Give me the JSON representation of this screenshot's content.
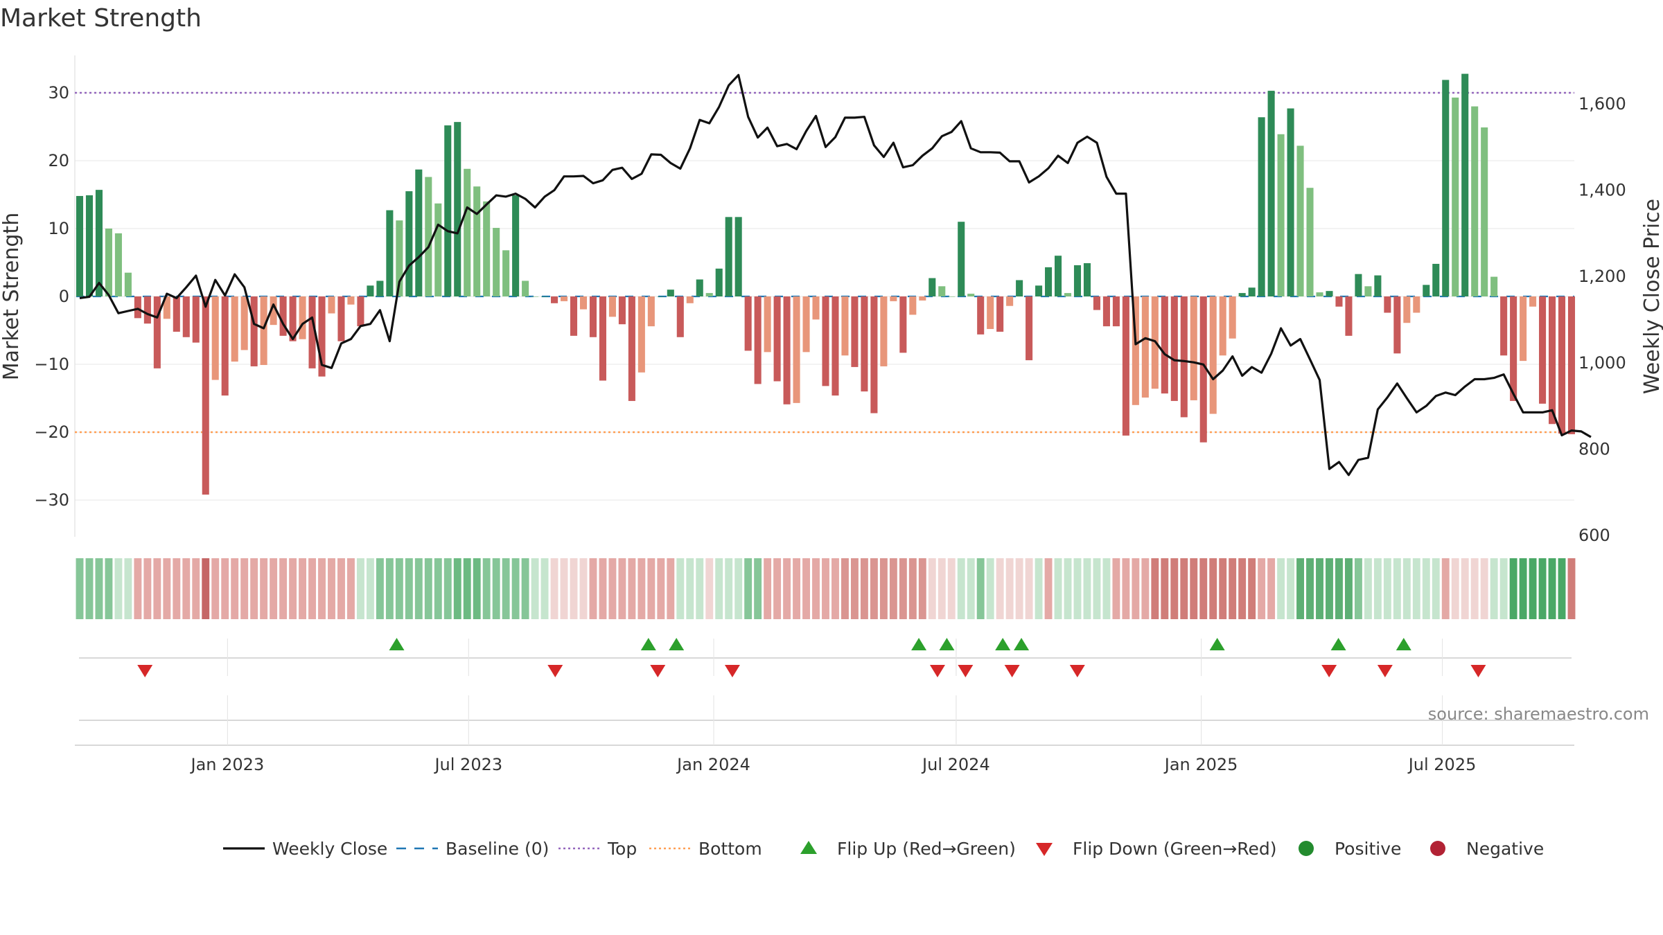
{
  "chart_data": {
    "type": "bar",
    "title": "Market Strength",
    "ylabel_left": "Market Strength",
    "ylabel_right": "Weekly Close Price",
    "ylim_left": [
      -35,
      36
    ],
    "ylim_right": [
      600,
      1690
    ],
    "yticks_left": [
      30,
      20,
      10,
      0,
      -10,
      -20,
      -30
    ],
    "yticks_right": [
      1600,
      1400,
      1200,
      1000,
      800,
      600
    ],
    "top_level": 30,
    "bottom_level": -20,
    "date_start": "2022-09-12",
    "date_end": "2025-10-06",
    "x_ticks": [
      {
        "date": "2023-01-01",
        "label": "Jan 2023"
      },
      {
        "date": "2023-07-01",
        "label": "Jul 2023"
      },
      {
        "date": "2024-01-01",
        "label": "Jan 2024"
      },
      {
        "date": "2024-07-01",
        "label": "Jul 2024"
      },
      {
        "date": "2025-01-01",
        "label": "Jan 2025"
      },
      {
        "date": "2025-07-01",
        "label": "Jul 2025"
      }
    ],
    "series": [
      {
        "name": "Market Strength",
        "values": [
          14.8,
          14.9,
          15.7,
          10,
          9.3,
          3.5,
          -3.2,
          -4,
          -10.6,
          -3.3,
          -5.2,
          -6,
          -6.8,
          -29.2,
          -12.3,
          -14.6,
          -9.6,
          -7.9,
          -10.3,
          -10.1,
          -4.2,
          -5.8,
          -6.6,
          -6.3,
          -10.6,
          -11.8,
          -2.5,
          -6.6,
          -1.2,
          -4.4,
          1.6,
          2.3,
          12.7,
          11.2,
          15.5,
          18.7,
          17.6,
          13.7,
          25.2,
          25.7,
          18.8,
          16.2,
          14,
          10.1,
          6.8,
          14.9,
          2.3,
          0,
          0,
          -1,
          -0.7,
          -5.8,
          -1.9,
          -6,
          -12.4,
          -3,
          -4.1,
          -15.4,
          -11.2,
          -4.4,
          0,
          1,
          -6,
          -1,
          2.5,
          0.5,
          4.1,
          11.7,
          11.7,
          -8,
          -12.9,
          -8.2,
          -12.5,
          -15.9,
          -15.7,
          -8.2,
          -3.4,
          -13.2,
          -14.6,
          -8.7,
          -10.4,
          -14,
          -17.2,
          -10.3,
          -0.7,
          -8.3,
          -2.7,
          -0.6,
          2.7,
          1.5,
          0,
          11,
          0.4,
          -5.6,
          -4.8,
          -5.2,
          -1.4,
          2.4,
          -9.4,
          1.6,
          4.3,
          6,
          0.5,
          4.6,
          4.9,
          -2,
          -4.4,
          -4.4,
          -20.5,
          -16,
          -14.9,
          -13.6,
          -14.3,
          -15.4,
          -17.8,
          -15.3,
          -21.5,
          -17.3,
          -8.7,
          -6.2,
          0.5,
          1.3,
          26.4,
          30.3,
          23.9,
          27.7,
          22.2,
          16,
          0.6,
          0.8,
          -1.5,
          -5.8,
          3.3,
          1.5,
          3.1,
          -2.4,
          -8.4,
          -3.9,
          -2.4,
          1.7,
          4.8,
          31.9,
          29.3,
          32.8,
          28,
          24.9,
          2.9,
          -8.7,
          -15.4,
          -9.5,
          -1.5,
          -15.8,
          -18.8,
          -20.2,
          -20.3
        ]
      },
      {
        "name": "Weekly Close",
        "values": [
          1150,
          1153,
          1185,
          1157,
          1115,
          1120,
          1125,
          1113,
          1105,
          1160,
          1150,
          1175,
          1202,
          1130,
          1192,
          1156,
          1205,
          1175,
          1090,
          1080,
          1135,
          1090,
          1055,
          1090,
          1105,
          995,
          988,
          1045,
          1055,
          1085,
          1090,
          1122,
          1050,
          1188,
          1225,
          1245,
          1268,
          1320,
          1305,
          1300,
          1360,
          1345,
          1367,
          1388,
          1385,
          1392,
          1380,
          1360,
          1385,
          1400,
          1432,
          1432,
          1433,
          1416,
          1423,
          1447,
          1452,
          1426,
          1438,
          1483,
          1482,
          1463,
          1450,
          1497,
          1563,
          1555,
          1593,
          1643,
          1667,
          1570,
          1522,
          1545,
          1502,
          1507,
          1495,
          1537,
          1572,
          1500,
          1523,
          1568,
          1568,
          1570,
          1504,
          1477,
          1510,
          1453,
          1458,
          1480,
          1497,
          1525,
          1535,
          1560,
          1497,
          1488,
          1488,
          1487,
          1467,
          1467,
          1418,
          1432,
          1451,
          1480,
          1463,
          1510,
          1524,
          1510,
          1431,
          1392,
          1392,
          1043,
          1057,
          1050,
          1020,
          1006,
          1004,
          1001,
          996,
          962,
          982,
          1015,
          970,
          990,
          977,
          1021,
          1080,
          1040,
          1055,
          1008,
          960,
          754,
          770,
          740,
          775,
          780,
          892,
          920,
          952,
          918,
          885,
          900,
          923,
          931,
          925,
          945,
          962,
          962,
          965,
          973,
          928,
          885,
          885,
          885,
          890,
          832,
          843,
          841,
          828
        ]
      }
    ],
    "state_strip": [
      {
        "color": "#86c698",
        "count": 4
      },
      {
        "color": "#c6e5ce",
        "count": 2
      },
      {
        "color": "#e4a9a6",
        "count": 7
      },
      {
        "color": "#c56666",
        "count": 1
      },
      {
        "color": "#e4a9a6",
        "count": 15
      },
      {
        "color": "#c6e5ce",
        "count": 2
      },
      {
        "color": "#86c698",
        "count": 8
      },
      {
        "color": "#6cba82",
        "count": 3
      },
      {
        "color": "#86c698",
        "count": 5
      },
      {
        "color": "#c6e5ce",
        "count": 2
      },
      {
        "color": "#f0d5d3",
        "count": 4
      },
      {
        "color": "#e4a9a6",
        "count": 9
      },
      {
        "color": "#c6e5ce",
        "count": 3
      },
      {
        "color": "#f0d5d3",
        "count": 1
      },
      {
        "color": "#c6e5ce",
        "count": 3
      },
      {
        "color": "#86c698",
        "count": 2
      },
      {
        "color": "#e4a9a6",
        "count": 8
      },
      {
        "color": "#da9591",
        "count": 9
      },
      {
        "color": "#f0d5d3",
        "count": 3
      },
      {
        "color": "#c6e5ce",
        "count": 2
      },
      {
        "color": "#86c698",
        "count": 1
      },
      {
        "color": "#c6e5ce",
        "count": 1
      },
      {
        "color": "#f0d5d3",
        "count": 4
      },
      {
        "color": "#c6e5ce",
        "count": 1
      },
      {
        "color": "#e4a9a6",
        "count": 1
      },
      {
        "color": "#c6e5ce",
        "count": 6
      },
      {
        "color": "#e4a9a6",
        "count": 4
      },
      {
        "color": "#d07d79",
        "count": 11
      },
      {
        "color": "#e4a9a6",
        "count": 2
      },
      {
        "color": "#c6e5ce",
        "count": 2
      },
      {
        "color": "#5daf74",
        "count": 6
      },
      {
        "color": "#86c698",
        "count": 1
      },
      {
        "color": "#c6e5ce",
        "count": 8
      },
      {
        "color": "#e4a9a6",
        "count": 1
      },
      {
        "color": "#f0d5d3",
        "count": 4
      },
      {
        "color": "#c6e5ce",
        "count": 2
      },
      {
        "color": "#4aa866",
        "count": 6
      },
      {
        "color": "#d07d79",
        "count": 8
      }
    ],
    "flip_up_dates": [
      "2023-05-08",
      "2023-11-13",
      "2023-12-04",
      "2024-06-03",
      "2024-06-24",
      "2024-08-05",
      "2024-08-19",
      "2025-01-13",
      "2025-04-14",
      "2025-06-02"
    ],
    "flip_down_dates": [
      "2022-10-31",
      "2023-09-04",
      "2023-11-20",
      "2024-01-15",
      "2024-06-17",
      "2024-07-08",
      "2024-08-12",
      "2024-09-30",
      "2025-04-07",
      "2025-05-19",
      "2025-07-28"
    ],
    "legend": [
      {
        "label": "Weekly Close",
        "kind": "line",
        "color": "#111111"
      },
      {
        "label": "Baseline (0)",
        "kind": "dash",
        "color": "#1f77b4"
      },
      {
        "label": "Top",
        "kind": "dot",
        "color": "#9467bd"
      },
      {
        "label": "Bottom",
        "kind": "dot",
        "color": "#ff9f55"
      },
      {
        "label": "Flip Up (Red→Green)",
        "kind": "triangle-up",
        "color": "#2ca02c"
      },
      {
        "label": "Flip Down (Green→Red)",
        "kind": "triangle-down",
        "color": "#d62728"
      },
      {
        "label": "Positive",
        "kind": "circle",
        "color": "#238b2e"
      },
      {
        "label": "Negative",
        "kind": "circle",
        "color": "#b22234"
      }
    ],
    "source": "source: sharemaestro.com",
    "colors": {
      "pos_dark": "#2e8b57",
      "pos_light": "#7fbf7f",
      "neg_dark": "#c85a5a",
      "neg_light": "#e8967a",
      "flip_up": "#2ca02c",
      "flip_down": "#d62728",
      "price_line": "#111111",
      "top_line": "#9467bd",
      "bottom_line": "#ff9f55",
      "baseline": "#1f77b4"
    }
  }
}
